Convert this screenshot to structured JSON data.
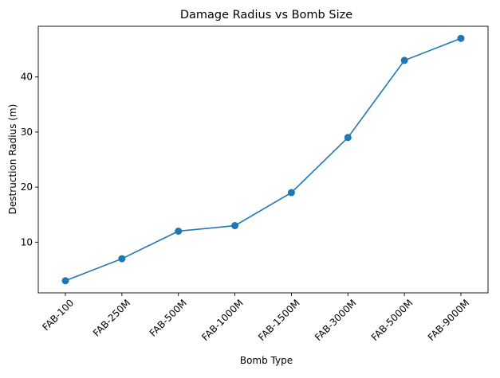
{
  "chart_data": {
    "type": "line",
    "title": "Damage Radius vs Bomb Size",
    "xlabel": "Bomb Type",
    "ylabel": "Destruction Radius (m)",
    "categories": [
      "FAB-100",
      "FAB-250M",
      "FAB-500M",
      "FAB-1000M",
      "FAB-1500M",
      "FAB-3000M",
      "FAB-5000M",
      "FAB-9000M"
    ],
    "series": [
      {
        "values": [
          3,
          7,
          12,
          13,
          19,
          29,
          43,
          47
        ],
        "color": "#1f77b4",
        "marker": "circle"
      }
    ],
    "ylim": [
      0.8,
      49.2
    ],
    "yticks": [
      10,
      20,
      30,
      40
    ],
    "grid": false,
    "legend": "none"
  }
}
